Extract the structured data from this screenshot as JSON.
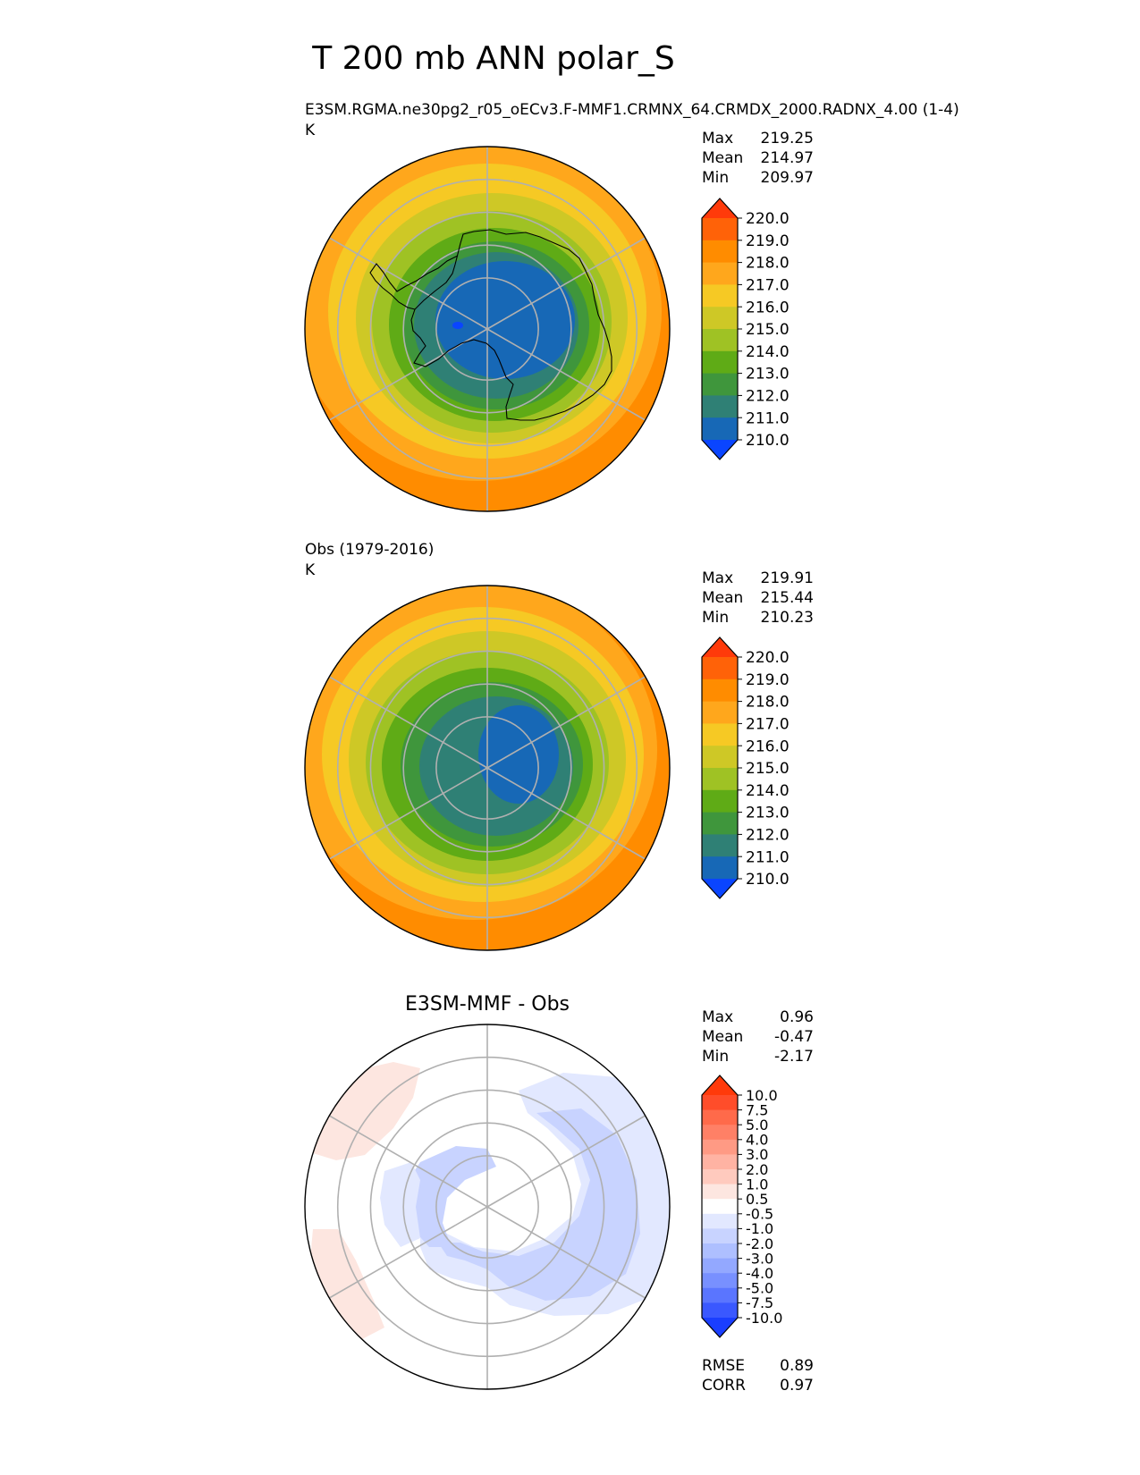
{
  "figure": {
    "title": "T 200 mb ANN polar_S"
  },
  "chart_data": [
    {
      "type": "heatmap",
      "projection": "south-polar-stereographic",
      "title": "E3SM.RGMA.ne30pg2_r05_oECv3.F-MMF1.CRMNX_64.CRMDX_2000.RADNX_4.00 (1-4)",
      "units": "K",
      "stats": [
        {
          "label": "Max",
          "value": "219.25"
        },
        {
          "label": "Mean",
          "value": "214.97"
        },
        {
          "label": "Min",
          "value": "209.97"
        }
      ],
      "colorbar": {
        "levels": [
          "220.0",
          "219.0",
          "218.0",
          "217.0",
          "216.0",
          "215.0",
          "214.0",
          "213.0",
          "212.0",
          "211.0",
          "210.0"
        ],
        "colors": [
          "#ff3a0a",
          "#ff6208",
          "#ff8c00",
          "#ffa71c",
          "#f6c924",
          "#cec826",
          "#9fc224",
          "#5fab16",
          "#3f963c",
          "#2f8075",
          "#1768b6",
          "#0a45ff"
        ]
      },
      "field": {
        "min": 209.97,
        "max": 219.25,
        "cold_center": 210.5
      }
    },
    {
      "type": "heatmap",
      "projection": "south-polar-stereographic",
      "title": "Obs (1979-2016)",
      "units": "K",
      "stats": [
        {
          "label": "Max",
          "value": "219.91"
        },
        {
          "label": "Mean",
          "value": "215.44"
        },
        {
          "label": "Min",
          "value": "210.23"
        }
      ],
      "colorbar": {
        "levels": [
          "220.0",
          "219.0",
          "218.0",
          "217.0",
          "216.0",
          "215.0",
          "214.0",
          "213.0",
          "212.0",
          "211.0",
          "210.0"
        ],
        "colors": [
          "#ff3a0a",
          "#ff6208",
          "#ff8c00",
          "#ffa71c",
          "#f6c924",
          "#cec826",
          "#9fc224",
          "#5fab16",
          "#3f963c",
          "#2f8075",
          "#1768b6",
          "#0a45ff"
        ]
      },
      "field": {
        "min": 210.23,
        "max": 219.91,
        "cold_center": 211.0
      }
    },
    {
      "type": "heatmap",
      "projection": "south-polar-stereographic",
      "title": "E3SM-MMF - Obs",
      "units": "K",
      "stats": [
        {
          "label": "Max",
          "value": "0.96"
        },
        {
          "label": "Mean",
          "value": "-0.47"
        },
        {
          "label": "Min",
          "value": "-2.17"
        }
      ],
      "metrics": [
        {
          "label": "RMSE",
          "value": "0.89"
        },
        {
          "label": "CORR",
          "value": "0.97"
        }
      ],
      "colorbar": {
        "levels": [
          "10.0",
          "7.5",
          "5.0",
          "4.0",
          "3.0",
          "2.0",
          "1.0",
          "0.5",
          "-0.5",
          "-1.0",
          "-2.0",
          "-3.0",
          "-4.0",
          "-5.0",
          "-7.5",
          "-10.0"
        ],
        "colors": [
          "#ff3a0a",
          "#ff4d2a",
          "#ff6a4a",
          "#ff8066",
          "#ff9a84",
          "#ffb3a3",
          "#ffcabe",
          "#fde6e0",
          "#ffffff",
          "#e2e8ff",
          "#c8d3ff",
          "#aebfff",
          "#93a8ff",
          "#7890ff",
          "#5a75ff",
          "#3a58ff",
          "#1a3eff"
        ]
      }
    }
  ]
}
